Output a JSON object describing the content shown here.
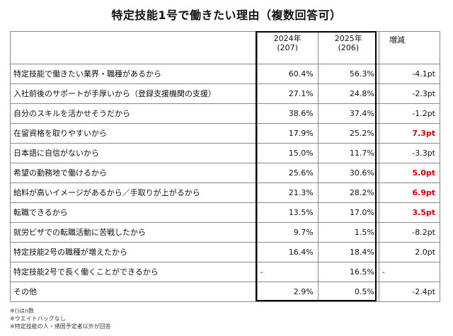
{
  "title": "特定技能1号で働きたい理由（複数回答可）",
  "columns": {
    "item": "",
    "y2024": "2024年",
    "y2024_n": "(207)",
    "y2025": "2025年",
    "y2025_n": "(206)",
    "diff": "増減"
  },
  "rows": [
    {
      "item": "特定技能で働きたい業界・職種があるから",
      "y2024": "60.4%",
      "y2025": "56.3%",
      "diff": "-4.1pt",
      "highlight": false
    },
    {
      "item": "入社前後のサポートが手厚いから（登録支援機関の支援）",
      "y2024": "27.1%",
      "y2025": "24.8%",
      "diff": "-2.3pt",
      "highlight": false
    },
    {
      "item": "自分のスキルを活かせそうだから",
      "y2024": "38.6%",
      "y2025": "37.4%",
      "diff": "-1.2pt",
      "highlight": false
    },
    {
      "item": "在留資格を取りやすいから",
      "y2024": "17.9%",
      "y2025": "25.2%",
      "diff": "7.3pt",
      "highlight": true
    },
    {
      "item": "日本語に自信がないから",
      "y2024": "15.0%",
      "y2025": "11.7%",
      "diff": "-3.3pt",
      "highlight": false
    },
    {
      "item": "希望の勤務地で働けるから",
      "y2024": "25.6%",
      "y2025": "30.6%",
      "diff": "5.0pt",
      "highlight": true
    },
    {
      "item": "給料が高いイメージがあるから／手取りが上がるから",
      "y2024": "21.3%",
      "y2025": "28.2%",
      "diff": "6.9pt",
      "highlight": true
    },
    {
      "item": "転職できるから",
      "y2024": "13.5%",
      "y2025": "17.0%",
      "diff": "3.5pt",
      "highlight": true
    },
    {
      "item": "就労ビザでの転職活動に苦戦したから",
      "y2024": "9.7%",
      "y2025": "1.5%",
      "diff": "-8.2pt",
      "highlight": false
    },
    {
      "item": "特定技能2号の職種が増えたから",
      "y2024": "16.4%",
      "y2025": "18.4%",
      "diff": "2.0pt",
      "highlight": false
    },
    {
      "item": "特定技能2号で長く働くことができるから",
      "y2024": "-",
      "y2025": "16.5%",
      "diff": "-",
      "highlight": false,
      "blank2024": true
    },
    {
      "item": "その他",
      "y2024": "2.9%",
      "y2025": "0.5%",
      "diff": "-2.4pt",
      "highlight": false
    }
  ],
  "notes": [
    "※()はn数",
    "※ウエイトバックなし",
    "※特定技能の人・帰国予定者以外が回答"
  ],
  "colors": {
    "highlight": "#e00000",
    "border": "#888888",
    "frame": "#000000"
  }
}
